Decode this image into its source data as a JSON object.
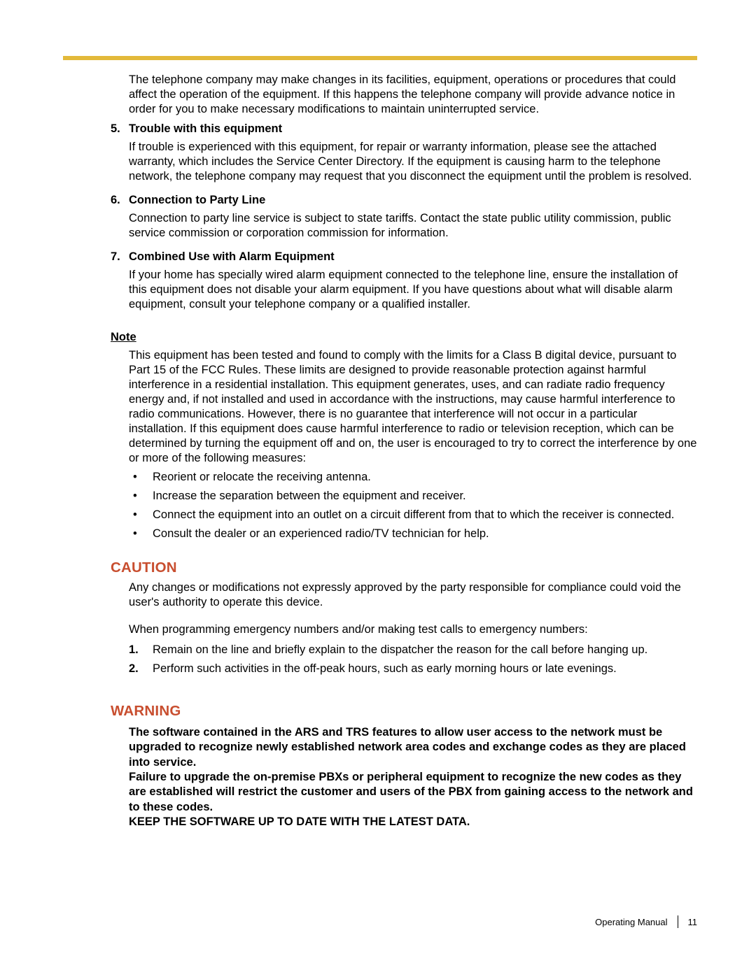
{
  "colors": {
    "rule": "#e3b93a",
    "heading": "#c84e2f",
    "text": "#000000",
    "background": "#ffffff"
  },
  "intro": "The telephone company may make changes in its facilities, equipment, operations or procedures that could affect the operation of the equipment. If this happens the telephone company will provide advance notice in order for you to make necessary modifications to maintain uninterrupted service.",
  "items": [
    {
      "num": "5.",
      "title": "Trouble with this equipment",
      "text": "If trouble is experienced with this equipment, for repair or warranty information, please see the attached warranty, which includes the Service Center Directory. If the equipment is causing harm to the telephone network, the telephone company may request that you disconnect the equipment until the problem is resolved."
    },
    {
      "num": "6.",
      "title": "Connection to Party Line",
      "text": "Connection to party line service is subject to state tariffs. Contact the state public utility commission, public service commission or corporation commission for information."
    },
    {
      "num": "7.",
      "title": "Combined Use with Alarm Equipment",
      "text": "If your home has specially wired alarm equipment connected to the telephone line, ensure the installation of this equipment does not disable your alarm equipment. If you have questions about what will disable alarm equipment, consult your telephone company or a qualified installer."
    }
  ],
  "note": {
    "label": "Note",
    "text": "This equipment has been tested and found to comply with the limits for a Class B digital device, pursuant to Part 15 of the FCC Rules. These limits are designed to provide reasonable protection against harmful interference in a residential installation. This equipment generates, uses, and can radiate radio frequency energy and, if not installed and used in accordance with the instructions, may cause harmful interference to radio communications. However, there is no guarantee that interference will not occur in a particular installation. If this equipment does cause harmful interference to radio or television reception, which can be determined by turning the equipment off and on, the user is encouraged to try to correct the interference by one or more of the following measures:",
    "bullets": [
      "Reorient or relocate the receiving antenna.",
      "Increase the separation between the equipment and receiver.",
      "Connect the equipment into an outlet on a circuit different from that to which the receiver is connected.",
      "Consult the dealer or an experienced radio/TV technician for help."
    ]
  },
  "caution": {
    "heading": "CAUTION",
    "text1": "Any changes or modifications not expressly approved by the party responsible for compliance could void the user's authority to operate this device.",
    "text2": "When programming emergency numbers and/or making test calls to emergency numbers:",
    "list": [
      {
        "num": "1.",
        "text": "Remain on the line and briefly explain to the dispatcher the reason for the call before hanging up."
      },
      {
        "num": "2.",
        "text": "Perform such activities in the off-peak hours, such as early morning hours or late evenings."
      }
    ]
  },
  "warning": {
    "heading": "WARNING",
    "p1": "The software contained in the ARS and TRS features to allow user access to the network must be upgraded to recognize newly established network area codes and exchange codes as they are placed into service.",
    "p2": "Failure to upgrade the on-premise PBXs or peripheral equipment to recognize the new codes as they are established will restrict the customer and users of the PBX from gaining access to the network and to these codes.",
    "p3": "KEEP THE SOFTWARE UP TO DATE WITH THE LATEST DATA."
  },
  "footer": {
    "title": "Operating Manual",
    "page": "11"
  }
}
